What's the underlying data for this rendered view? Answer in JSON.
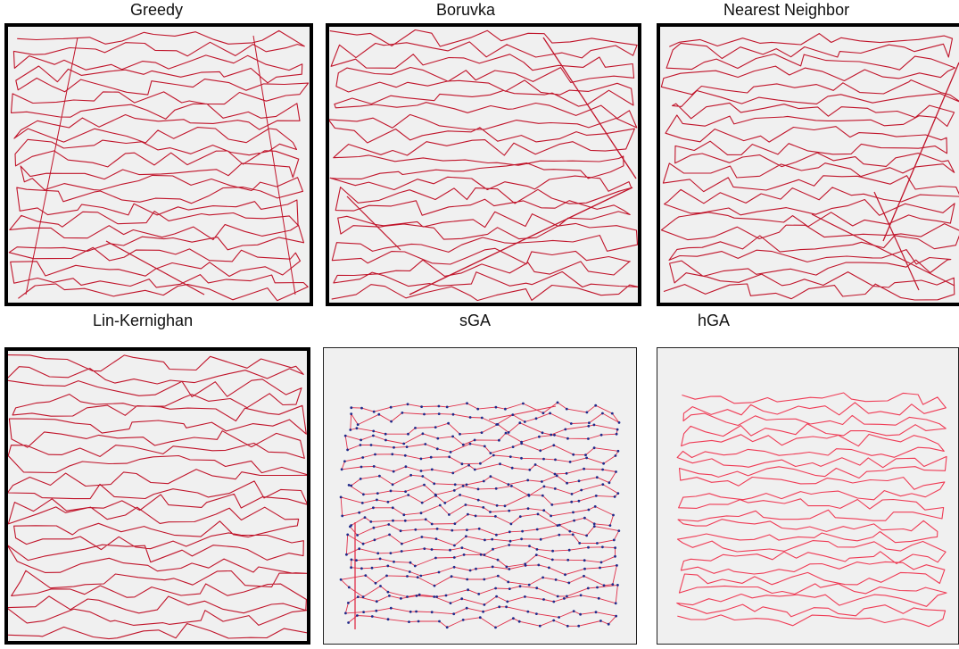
{
  "panels": [
    {
      "key": "greedy",
      "title": "Greedy",
      "colors": {
        "route": "#c0142a",
        "background": "#f0f0f0"
      },
      "frame": "thick",
      "show_nodes": false
    },
    {
      "key": "boruvka",
      "title": "Boruvka",
      "colors": {
        "route": "#c0142a",
        "background": "#f0f0f0"
      },
      "frame": "thick",
      "show_nodes": false
    },
    {
      "key": "nearest-neighbor",
      "title": "Nearest Neighbor",
      "colors": {
        "route": "#c0142a",
        "background": "#f0f0f0"
      },
      "frame": "thick",
      "show_nodes": false
    },
    {
      "key": "lin-kernighan",
      "title": "Lin-Kernighan",
      "colors": {
        "route": "#c0142a",
        "background": "#f0f0f0"
      },
      "frame": "thick",
      "show_nodes": false
    },
    {
      "key": "sga",
      "title": "sGA",
      "colors": {
        "route": "#e0304a",
        "node": "#1f2a8a",
        "background": "#f0f0f0"
      },
      "frame": "thin",
      "show_nodes": true
    },
    {
      "key": "hga",
      "title": "hGA",
      "colors": {
        "route": "#ef3b55",
        "background": "#f0f0f0"
      },
      "frame": "thin",
      "show_nodes": false
    }
  ]
}
